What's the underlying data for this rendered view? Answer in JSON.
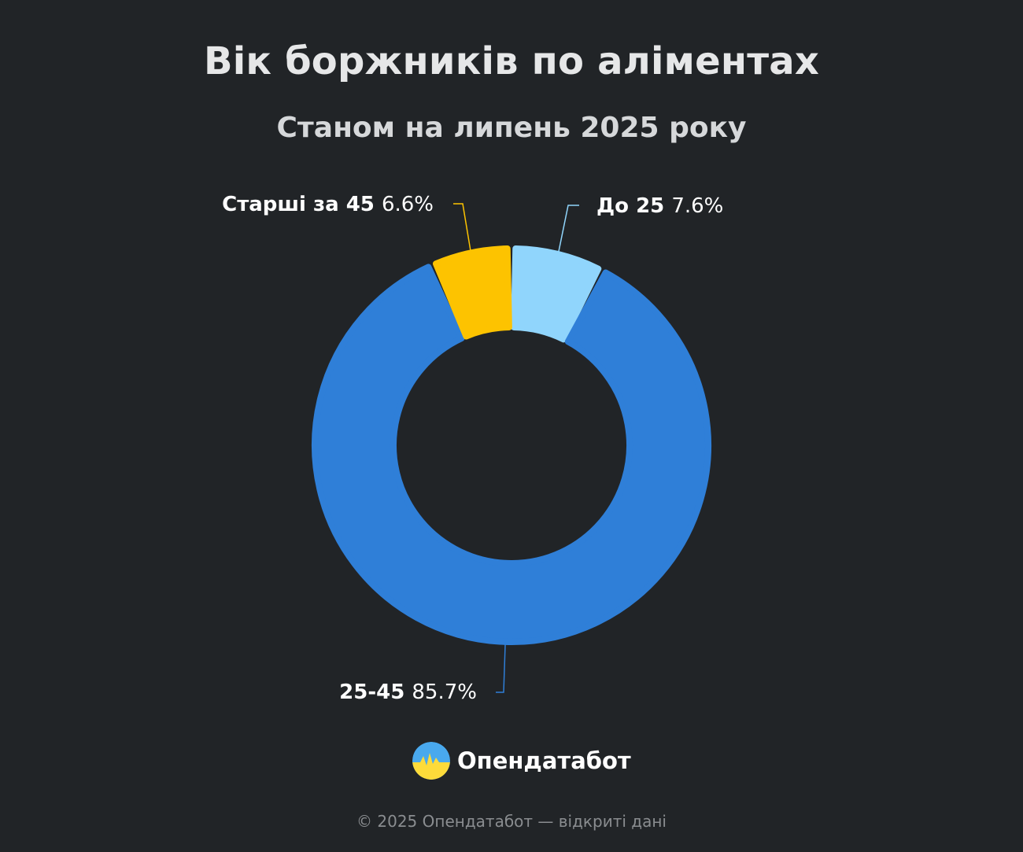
{
  "header": {
    "title": "Вік боржників по аліментах",
    "subtitle": "Станом на липень 2025 року"
  },
  "chart_data": {
    "type": "pie",
    "donut": true,
    "title": "Вік боржників по аліментах",
    "subtitle": "Станом на липень 2025 року",
    "slices": [
      {
        "label": "До 25",
        "value": 7.6,
        "value_text": "7.6%",
        "color": "#90d5fc"
      },
      {
        "label": "25-45",
        "value": 85.7,
        "value_text": "85.7%",
        "color": "#2f7fd8"
      },
      {
        "label": "Старші за 45",
        "value": 6.6,
        "value_text": "6.6%",
        "color": "#fdc300"
      }
    ],
    "start_angle": "12 o'clock",
    "direction": "clockwise",
    "legend": "none"
  },
  "brand": {
    "name": "Опендатабот",
    "logo_icon": "opendatabot-logo-icon",
    "logo_colors": [
      "#49a9ee",
      "#fddb3a"
    ]
  },
  "footer": {
    "text": "© 2025 Опендатабот — відкриті дані"
  }
}
